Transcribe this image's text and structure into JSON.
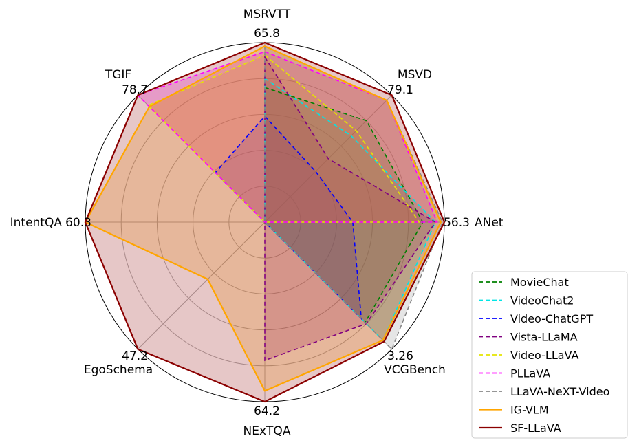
{
  "chart_data": {
    "type": "radar",
    "axes": [
      {
        "name": "MSRVTT",
        "max_label": "65.8"
      },
      {
        "name": "MSVD",
        "max_label": "79.1"
      },
      {
        "name": "ANet",
        "max_label": "56.3"
      },
      {
        "name": "VCGBench",
        "max_label": "3.26"
      },
      {
        "name": "NExTQA",
        "max_label": "64.2"
      },
      {
        "name": "EgoSchema",
        "max_label": "47.2"
      },
      {
        "name": "IntentQA",
        "max_label": "60.3"
      },
      {
        "name": "TGIF",
        "max_label": "78.7"
      }
    ],
    "range_note": "values normalized 0-1 of each axis max",
    "series": [
      {
        "name": "MovieChat",
        "color": "#008000",
        "style": "dashed",
        "values": [
          0.75,
          0.8,
          0.88,
          0.79,
          0,
          0,
          0,
          0
        ]
      },
      {
        "name": "VideoChat2",
        "color": "#00e5e5",
        "style": "dashed",
        "values": [
          0.8,
          0.68,
          0.95,
          0.93,
          0,
          0,
          0,
          0
        ]
      },
      {
        "name": "Video-ChatGPT",
        "color": "#0000ff",
        "style": "dashed",
        "values": [
          0.59,
          0.4,
          0.49,
          0.76,
          0,
          0,
          0,
          0.39
        ]
      },
      {
        "name": "Vista-LLaMA",
        "color": "#800080",
        "style": "dashed",
        "values": [
          0.92,
          0.5,
          0.95,
          0.8,
          0.77,
          0,
          0,
          0
        ]
      },
      {
        "name": "Video-LLaVA",
        "color": "#e5e500",
        "style": "dashed",
        "values": [
          0.93,
          0.72,
          0.86,
          0,
          0,
          0,
          0,
          0.92
        ]
      },
      {
        "name": "PLLaVA",
        "color": "#ff00ff",
        "style": "dashed",
        "values": [
          0.95,
          0.96,
          0.96,
          0,
          0,
          0,
          0,
          1.0
        ]
      },
      {
        "name": "LLaVA-NeXT-Video",
        "color": "#888888",
        "style": "dashed",
        "values": [
          0.98,
          0.96,
          0.99,
          1.0,
          0,
          0,
          0,
          0
        ]
      },
      {
        "name": "IG-VLM",
        "color": "#ffa500",
        "style": "solid",
        "values": [
          0.98,
          0.96,
          0.98,
          0.93,
          0.94,
          0.45,
          1.0,
          0.91
        ]
      },
      {
        "name": "SF-LLaVA",
        "color": "#8b0000",
        "style": "solid",
        "values": [
          1.0,
          1.0,
          1.0,
          0.94,
          1.0,
          1.0,
          1.0,
          1.0
        ]
      }
    ]
  }
}
